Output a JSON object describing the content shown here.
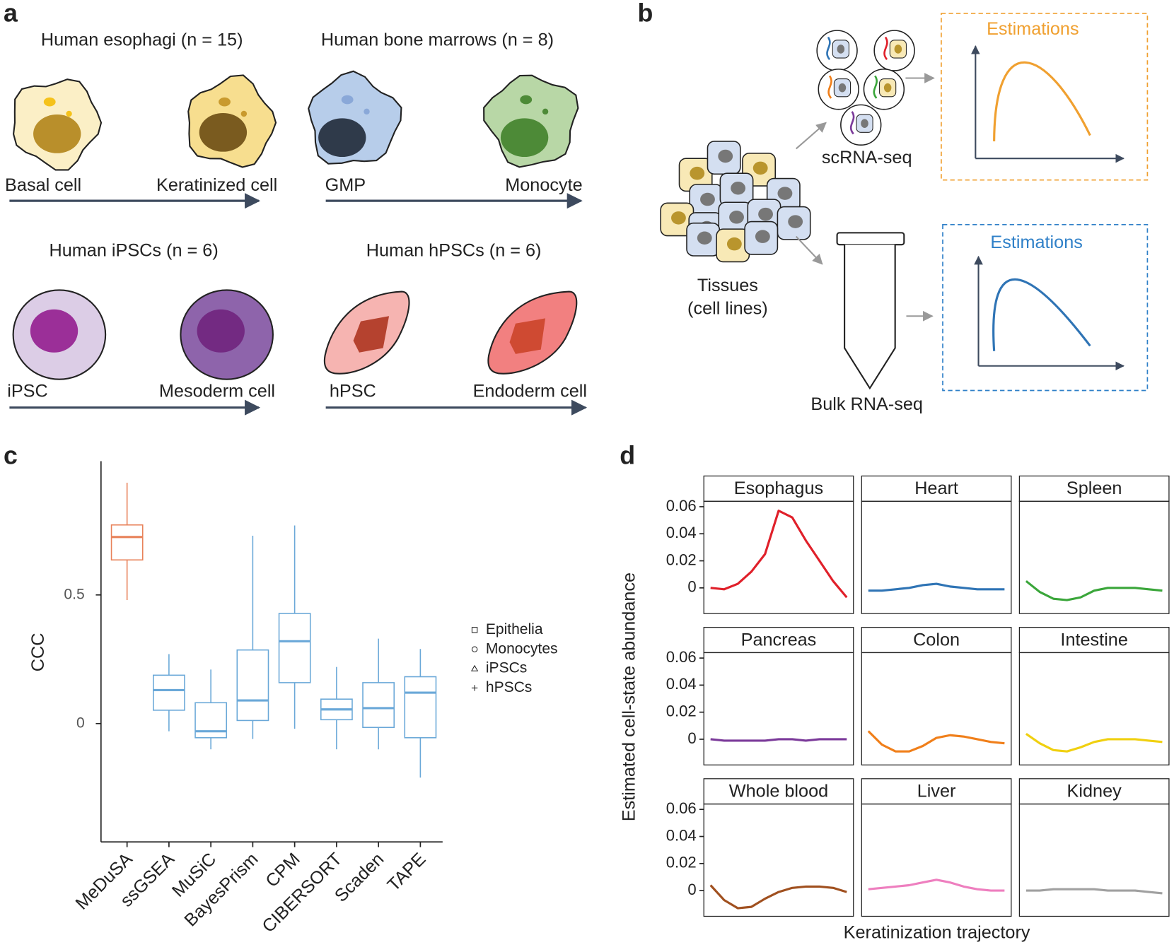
{
  "panel_a": {
    "label": "a",
    "groups": [
      {
        "title": "Human esophagi (n = 15)",
        "start": "Basal cell",
        "end": "Keratinized cell"
      },
      {
        "title": "Human bone marrows (n = 8)",
        "start": "GMP",
        "end": "Monocyte"
      },
      {
        "title": "Human iPSCs (n = 6)",
        "start": "iPSC",
        "end": "Mesoderm cell"
      },
      {
        "title": "Human hPSCs (n = 6)",
        "start": "hPSC",
        "end": "Endoderm cell"
      }
    ]
  },
  "panel_b": {
    "label": "b",
    "tissues_label": [
      "Tissues",
      "(cell lines)"
    ],
    "sc_label": "scRNA-seq",
    "bulk_label": "Bulk RNA-seq",
    "sc_estimations": "Estimations",
    "bulk_estimations": "Estimations"
  },
  "chart_data": [
    {
      "type": "box",
      "label": "c",
      "ylabel": "CCC",
      "categories": [
        "MeDuSA",
        "ssGSEA",
        "MuSiC",
        "BayesPrism",
        "CPM",
        "CIBERSORT",
        "Scaden",
        "TAPE"
      ],
      "boxes": [
        {
          "low": 0.48,
          "q1": 0.636,
          "median": 0.725,
          "q3": 0.772,
          "high": 0.936,
          "color": "#e8825a"
        },
        {
          "low": -0.03,
          "q1": 0.052,
          "median": 0.13,
          "q3": 0.188,
          "high": 0.27,
          "color": "#6aa8d8"
        },
        {
          "low": -0.1,
          "q1": -0.055,
          "median": -0.03,
          "q3": 0.081,
          "high": 0.21,
          "color": "#6aa8d8"
        },
        {
          "low": -0.06,
          "q1": 0.012,
          "median": 0.09,
          "q3": 0.286,
          "high": 0.73,
          "color": "#6aa8d8"
        },
        {
          "low": -0.02,
          "q1": 0.159,
          "median": 0.32,
          "q3": 0.428,
          "high": 0.77,
          "color": "#6aa8d8"
        },
        {
          "low": -0.1,
          "q1": 0.015,
          "median": 0.055,
          "q3": 0.095,
          "high": 0.22,
          "color": "#6aa8d8"
        },
        {
          "low": -0.1,
          "q1": -0.015,
          "median": 0.06,
          "q3": 0.159,
          "high": 0.33,
          "color": "#6aa8d8"
        },
        {
          "low": -0.21,
          "q1": -0.055,
          "median": 0.12,
          "q3": 0.182,
          "high": 0.29,
          "color": "#6aa8d8"
        }
      ],
      "ylim": [
        -0.46,
        1.02
      ],
      "yticks": [
        0,
        0.5
      ],
      "legend": [
        {
          "name": "Epithelia",
          "marker": "square"
        },
        {
          "name": "Monocytes",
          "marker": "circle"
        },
        {
          "name": "iPSCs",
          "marker": "triangle"
        },
        {
          "name": "hPSCs",
          "marker": "plus"
        }
      ]
    },
    {
      "type": "line",
      "label": "d",
      "ylabel": "Estimated cell-state abundance",
      "xlabel": "Keratinization trajectory",
      "ylim": [
        -0.019,
        0.064
      ],
      "yticks": [
        0,
        0.02,
        0.04,
        0.06
      ],
      "series": [
        {
          "name": "Esophagus",
          "color": "#e0202a",
          "values": [
            0.0,
            -0.001,
            0.003,
            0.012,
            0.025,
            0.057,
            0.052,
            0.035,
            0.02,
            0.005,
            -0.007
          ]
        },
        {
          "name": "Heart",
          "color": "#2f74b5",
          "values": [
            -0.002,
            -0.002,
            -0.001,
            0.0,
            0.002,
            0.003,
            0.001,
            0.0,
            -0.001,
            -0.001,
            -0.001
          ]
        },
        {
          "name": "Spleen",
          "color": "#3aa63a",
          "values": [
            0.005,
            -0.003,
            -0.008,
            -0.009,
            -0.007,
            -0.002,
            0.0,
            0.0,
            0.0,
            -0.001,
            -0.002
          ]
        },
        {
          "name": "Pancreas",
          "color": "#7b3a9a",
          "values": [
            0.0,
            -0.001,
            -0.001,
            -0.001,
            -0.001,
            0.0,
            0.0,
            -0.001,
            0.0,
            0.0,
            0.0
          ]
        },
        {
          "name": "Colon",
          "color": "#f07f1a",
          "values": [
            0.006,
            -0.004,
            -0.009,
            -0.009,
            -0.005,
            0.001,
            0.003,
            0.002,
            0.0,
            -0.002,
            -0.003
          ]
        },
        {
          "name": "Intestine",
          "color": "#f0d010",
          "values": [
            0.004,
            -0.003,
            -0.008,
            -0.009,
            -0.006,
            -0.002,
            0.0,
            0.0,
            0.0,
            -0.001,
            -0.002
          ]
        },
        {
          "name": "Whole blood",
          "color": "#a0501f",
          "values": [
            0.004,
            -0.007,
            -0.013,
            -0.012,
            -0.006,
            -0.001,
            0.002,
            0.003,
            0.003,
            0.002,
            -0.001
          ]
        },
        {
          "name": "Liver",
          "color": "#ee7fbf",
          "values": [
            0.001,
            0.002,
            0.003,
            0.004,
            0.006,
            0.008,
            0.006,
            0.003,
            0.001,
            0.0,
            0.0
          ]
        },
        {
          "name": "Kidney",
          "color": "#a0a0a0",
          "values": [
            0.0,
            0.0,
            0.001,
            0.001,
            0.001,
            0.001,
            0.0,
            0.0,
            0.0,
            -0.001,
            -0.002
          ]
        }
      ]
    }
  ]
}
